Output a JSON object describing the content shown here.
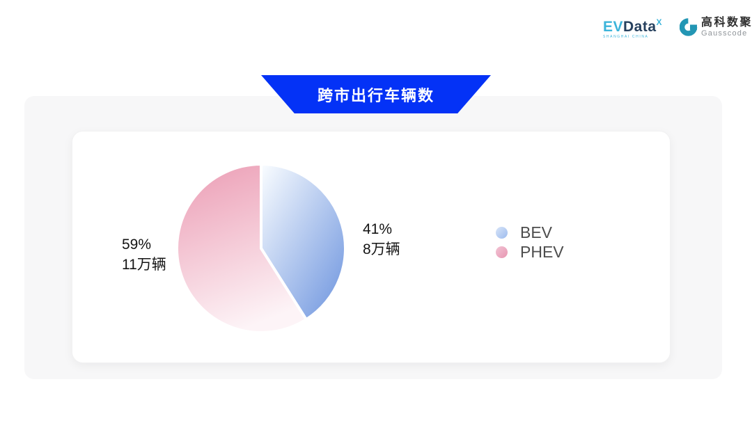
{
  "header": {
    "evdata": {
      "part1": "EV",
      "part2": "Data",
      "sup": "X",
      "tagline": "SHANGHAI CHINA",
      "teal": "#3cb4da",
      "navy": "#26405e"
    },
    "gausscode": {
      "name_cn": "高科数聚",
      "name_en": "Gausscode",
      "teal": "#2396b4",
      "text_dark": "#2f2f2f",
      "text_gray": "#8f9499"
    }
  },
  "banner": {
    "title": "跨市出行车辆数",
    "color": "#0432f6",
    "text_color": "#ffffff"
  },
  "chart_data": {
    "type": "pie",
    "title": "跨市出行车辆数",
    "start_angle_deg": 0,
    "direction": "clockwise",
    "unit": "万辆",
    "legend_position": "right",
    "slices": [
      {
        "label": "BEV",
        "percent": 41,
        "value": 8,
        "percent_label": "41%",
        "count_label": "8万辆",
        "gradient": [
          "#fafdff",
          "#7da0e2"
        ],
        "label_side": "right"
      },
      {
        "label": "PHEV",
        "percent": 59,
        "value": 11,
        "percent_label": "59%",
        "count_label": "11万辆",
        "gradient": [
          "#ec9fb6",
          "#fdf4f7"
        ],
        "label_side": "left"
      }
    ]
  },
  "legend": {
    "text_color": "#4d4d4d",
    "items": [
      {
        "label": "BEV",
        "dot_gradient": [
          "#d9e5f8",
          "#9cbbee"
        ]
      },
      {
        "label": "PHEV",
        "dot_gradient": [
          "#f2c4d4",
          "#e795b1"
        ]
      }
    ]
  }
}
